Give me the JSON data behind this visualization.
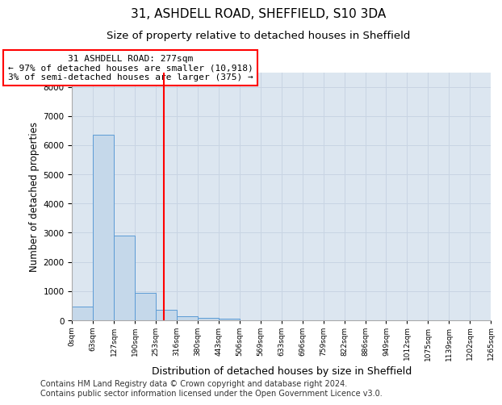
{
  "title": "31, ASHDELL ROAD, SHEFFIELD, S10 3DA",
  "subtitle": "Size of property relative to detached houses in Sheffield",
  "xlabel": "Distribution of detached houses by size in Sheffield",
  "ylabel": "Number of detached properties",
  "bin_labels": [
    "0sqm",
    "63sqm",
    "127sqm",
    "190sqm",
    "253sqm",
    "316sqm",
    "380sqm",
    "443sqm",
    "506sqm",
    "569sqm",
    "633sqm",
    "696sqm",
    "759sqm",
    "822sqm",
    "886sqm",
    "949sqm",
    "1012sqm",
    "1075sqm",
    "1139sqm",
    "1202sqm",
    "1265sqm"
  ],
  "bar_heights": [
    480,
    6350,
    2900,
    950,
    350,
    130,
    80,
    60,
    0,
    0,
    0,
    0,
    0,
    0,
    0,
    0,
    0,
    0,
    0,
    0
  ],
  "bar_color": "#c5d8ea",
  "bar_edge_color": "#5b9bd5",
  "vline_position": 4.38,
  "vline_color": "red",
  "annotation_text": "31 ASHDELL ROAD: 277sqm\n← 97% of detached houses are smaller (10,918)\n3% of semi-detached houses are larger (375) →",
  "annotation_box_color": "red",
  "ylim": [
    0,
    8500
  ],
  "yticks": [
    0,
    1000,
    2000,
    3000,
    4000,
    5000,
    6000,
    7000,
    8000
  ],
  "grid_color": "#c8d4e3",
  "background_color": "#dce6f0",
  "footer_text": "Contains HM Land Registry data © Crown copyright and database right 2024.\nContains public sector information licensed under the Open Government Licence v3.0.",
  "title_fontsize": 11,
  "subtitle_fontsize": 9.5,
  "xlabel_fontsize": 9,
  "ylabel_fontsize": 8.5,
  "annotation_fontsize": 8,
  "footer_fontsize": 7,
  "tick_fontsize": 7.5,
  "xtick_fontsize": 6.5
}
